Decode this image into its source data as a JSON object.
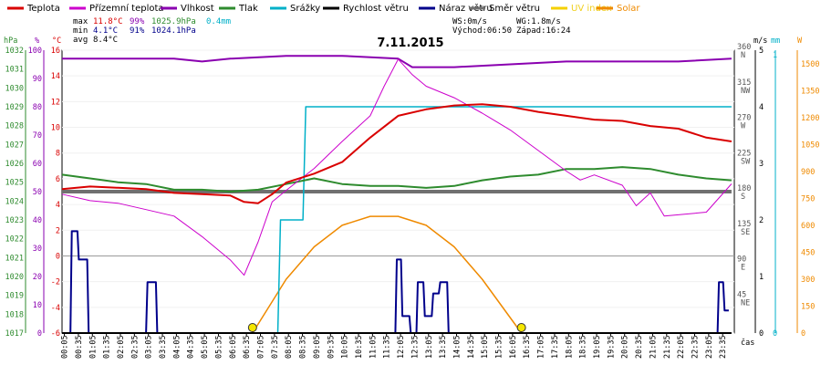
{
  "legend": [
    {
      "label": "Teplota",
      "color": "#d90000"
    },
    {
      "label": "Přízemní teplota",
      "color": "#cc00cc"
    },
    {
      "label": "Vlhkost",
      "color": "#8a00b0"
    },
    {
      "label": "Tlak",
      "color": "#2e8b2e"
    },
    {
      "label": "Srážky",
      "color": "#00b0c8"
    },
    {
      "label": "Rychlost větru",
      "color": "#000000"
    },
    {
      "label": "Náraz větru",
      "color": "#00008b"
    },
    {
      "label": "Směr větru",
      "color": "#707070"
    },
    {
      "label": "UV index",
      "color": "#f5d000"
    },
    {
      "label": "Solar",
      "color": "#ef8a00"
    }
  ],
  "stats": {
    "max_label": "max",
    "max_temp": "11.8°C",
    "max_hum": "99%",
    "max_press": "1025.9hPa",
    "rain": "0.4mm",
    "min_label": "min",
    "min_temp": "4.1°C",
    "min_hum": "91%",
    "min_press": "1024.1hPa",
    "avg_label": "avg",
    "avg_temp": "8.4°C"
  },
  "wind_stats": {
    "ws": "WS:0m/s",
    "wg": "WG:1.8m/s",
    "sunrise": "Východ:06:50",
    "sunset": "Západ:16:24"
  },
  "axis_units": {
    "hpa": "hPa",
    "pct": "%",
    "degc": "°C",
    "ms": "m/s",
    "mm": "mm",
    "w": "W",
    "time": "čas"
  },
  "chart_data": {
    "type": "line",
    "title": "7.11.2015",
    "x_ticks": [
      "00:05",
      "00:35",
      "01:05",
      "01:35",
      "02:05",
      "02:35",
      "03:05",
      "03:35",
      "04:05",
      "04:35",
      "05:05",
      "05:35",
      "06:05",
      "06:35",
      "07:05",
      "07:35",
      "08:05",
      "08:35",
      "09:05",
      "09:35",
      "10:05",
      "10:35",
      "11:05",
      "11:35",
      "12:05",
      "12:35",
      "13:05",
      "13:35",
      "14:05",
      "14:35",
      "15:05",
      "15:35",
      "16:05",
      "16:35",
      "17:05",
      "17:35",
      "18:05",
      "18:35",
      "19:05",
      "19:35",
      "20:05",
      "20:35",
      "21:05",
      "21:35",
      "22:05",
      "22:35",
      "23:05",
      "23:35"
    ],
    "axes": {
      "pressure": {
        "label": "hPa",
        "ticks": [
          1017,
          1018,
          1019,
          1020,
          1021,
          1022,
          1023,
          1024,
          1025,
          1026,
          1027,
          1028,
          1029,
          1030,
          1031,
          1032
        ],
        "color": "#2e8b2e"
      },
      "humidity": {
        "label": "%",
        "ticks": [
          0,
          10,
          20,
          30,
          40,
          50,
          60,
          70,
          80,
          90,
          100
        ],
        "color": "#8a00b0"
      },
      "temperature": {
        "label": "°C",
        "ticks": [
          -6,
          -4,
          -2,
          0,
          2,
          4,
          6,
          8,
          10,
          12,
          14,
          16
        ],
        "ylim": [
          -6,
          16
        ],
        "color": "#d90000"
      },
      "wind_dir": {
        "ticks": [
          "360",
          "315",
          "270",
          "225",
          "180",
          "135",
          "90",
          "45"
        ],
        "dir_labels": [
          "N",
          "NW",
          "W",
          "SW",
          "S",
          "SE",
          "E",
          "NE"
        ]
      },
      "wind_speed": {
        "label": "m/s",
        "ticks": [
          "5",
          "4",
          "3",
          "2",
          "1",
          "0"
        ]
      },
      "rain": {
        "label": "mm",
        "ticks": [
          "1",
          "0"
        ]
      },
      "solar": {
        "label": "W",
        "ticks": [
          "1500",
          "1350",
          "1200",
          "1050",
          "900",
          "750",
          "600",
          "450",
          "300",
          "150",
          "0"
        ]
      }
    },
    "series": [
      {
        "name": "Teplota",
        "unit": "°C",
        "x": [
          0,
          1,
          2,
          3,
          4,
          5,
          6,
          6.5,
          7,
          7.5,
          8,
          9,
          10,
          11,
          12,
          13,
          14,
          15,
          16,
          17,
          18,
          19,
          20,
          21,
          22,
          23,
          23.9
        ],
        "y": [
          5.2,
          5.4,
          5.3,
          5.2,
          4.9,
          4.8,
          4.7,
          4.2,
          4.1,
          4.8,
          5.7,
          6.4,
          7.3,
          9.2,
          10.9,
          11.4,
          11.7,
          11.8,
          11.6,
          11.2,
          10.9,
          10.6,
          10.5,
          10.1,
          9.9,
          9.2,
          8.9
        ]
      },
      {
        "name": "Přízemní teplota",
        "unit": "°C",
        "x": [
          0,
          1,
          2,
          3,
          4,
          5,
          6,
          6.5,
          7,
          7.5,
          8,
          9,
          10,
          11,
          11.5,
          12,
          12.5,
          13,
          14,
          15,
          16,
          17,
          18,
          18.5,
          19,
          20,
          20.5,
          21,
          21.5,
          22,
          23,
          23.9
        ],
        "y": [
          4.8,
          4.3,
          4.1,
          3.6,
          3.1,
          1.5,
          -0.3,
          -1.5,
          1.1,
          4.2,
          5.1,
          6.8,
          8.9,
          10.9,
          13.2,
          15.3,
          14.1,
          13.2,
          12.3,
          11.1,
          9.8,
          8.2,
          6.6,
          5.9,
          6.3,
          5.5,
          3.9,
          4.9,
          3.1,
          3.2,
          3.4,
          5.6
        ]
      },
      {
        "name": "Vlhkost",
        "unit": "%",
        "x": [
          0,
          2,
          4,
          5,
          6,
          8,
          10,
          12,
          12.5,
          14,
          16,
          18,
          20,
          22,
          23.9
        ],
        "y": [
          97,
          97,
          97,
          96,
          97,
          98,
          98,
          97,
          94,
          94,
          95,
          96,
          96,
          96,
          97
        ]
      },
      {
        "name": "Tlak",
        "unit": "hPa",
        "x": [
          0,
          1,
          2,
          3,
          4,
          5,
          6,
          7,
          8,
          9,
          10,
          11,
          12,
          13,
          14,
          15,
          16,
          17,
          18,
          19,
          20,
          21,
          22,
          23,
          23.9
        ],
        "y": [
          1025.4,
          1025.2,
          1025,
          1024.9,
          1024.6,
          1024.6,
          1024.5,
          1024.6,
          1024.9,
          1025.2,
          1024.9,
          1024.8,
          1024.8,
          1024.7,
          1024.8,
          1025.1,
          1025.3,
          1025.4,
          1025.7,
          1025.7,
          1025.8,
          1025.7,
          1025.4,
          1025.2,
          1025.1
        ]
      },
      {
        "name": "Srážky",
        "unit": "mm",
        "x": [
          0,
          7.7,
          7.8,
          8.6,
          8.7,
          23.9
        ],
        "y": [
          0,
          0,
          0.2,
          0.2,
          0.4,
          0.4
        ]
      },
      {
        "name": "Rychlost větru",
        "unit": "m/s",
        "x": [
          0,
          23.9
        ],
        "y": [
          0,
          0
        ]
      },
      {
        "name": "Náraz větru",
        "unit": "m/s",
        "x": [
          0,
          0.3,
          0.35,
          0.55,
          0.6,
          0.9,
          0.95,
          3.0,
          3.05,
          3.35,
          3.4,
          11.9,
          11.95,
          12.1,
          12.15,
          12.4,
          12.45,
          12.65,
          12.7,
          12.9,
          12.95,
          13.2,
          13.25,
          13.45,
          13.5,
          13.75,
          13.8,
          23.4,
          23.45,
          23.6,
          23.65,
          23.8
        ],
        "y": [
          0,
          0,
          1.8,
          1.8,
          1.3,
          1.3,
          0,
          0,
          0.9,
          0.9,
          0,
          0,
          1.3,
          1.3,
          0.3,
          0.3,
          0,
          0,
          0.9,
          0.9,
          0.3,
          0.3,
          0.7,
          0.7,
          0.9,
          0.9,
          0,
          0,
          0.9,
          0.9,
          0.4,
          0.4
        ]
      },
      {
        "name": "Směr větru",
        "unit": "°",
        "x": [
          0,
          23.9
        ],
        "y": [
          180,
          180
        ]
      },
      {
        "name": "Solar",
        "unit": "W",
        "x": [
          6.8,
          8,
          9,
          10,
          11,
          12,
          13,
          14,
          15,
          16.4
        ],
        "y": [
          0,
          300,
          480,
          600,
          650,
          650,
          600,
          480,
          300,
          0
        ]
      }
    ],
    "sun_markers": [
      6.8,
      16.4
    ]
  }
}
